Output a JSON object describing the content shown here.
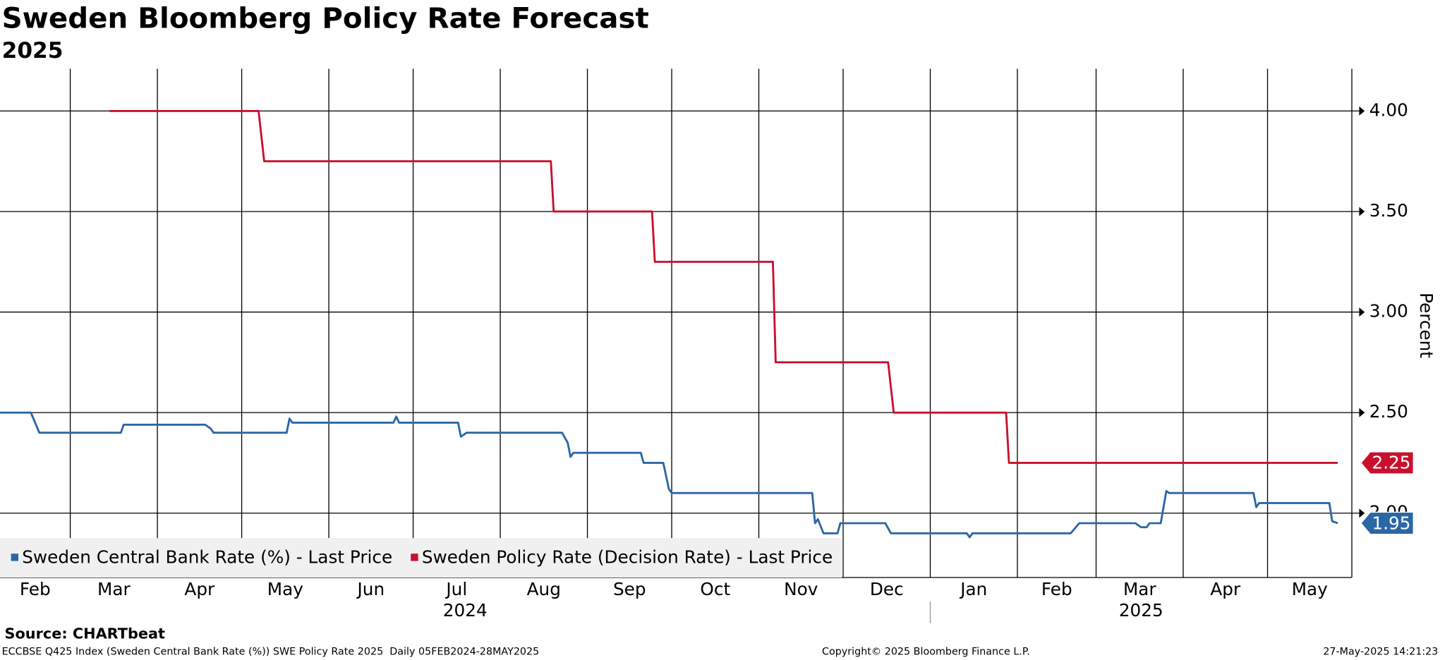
{
  "chart_data": {
    "type": "line",
    "title": "Sweden Bloomberg Policy Rate Forecast",
    "subtitle": "2025",
    "y_label": "Percent",
    "xlim": [
      "2024-02-05",
      "2025-05-31"
    ],
    "xticks": [
      {
        "value": "2024-02-01",
        "label": "Feb"
      },
      {
        "value": "2024-03-01",
        "label": "Mar"
      },
      {
        "value": "2024-04-01",
        "label": "Apr"
      },
      {
        "value": "2024-05-01",
        "label": "May"
      },
      {
        "value": "2024-06-01",
        "label": "Jun"
      },
      {
        "value": "2024-07-01",
        "label": "Jul"
      },
      {
        "value": "2024-08-01",
        "label": "Aug"
      },
      {
        "value": "2024-09-01",
        "label": "Sep"
      },
      {
        "value": "2024-10-01",
        "label": "Oct"
      },
      {
        "value": "2024-11-01",
        "label": "Nov"
      },
      {
        "value": "2024-12-01",
        "label": "Dec"
      },
      {
        "value": "2025-01-01",
        "label": "Jan"
      },
      {
        "value": "2025-02-01",
        "label": "Feb"
      },
      {
        "value": "2025-03-01",
        "label": "Mar"
      },
      {
        "value": "2025-04-01",
        "label": "Apr"
      },
      {
        "value": "2025-05-01",
        "label": "May"
      }
    ],
    "years": [
      "2024",
      "2025"
    ],
    "ylim": [
      1.68,
      4.21
    ],
    "yticks": [
      {
        "value": 2,
        "label": "2.00"
      },
      {
        "value": 2.5,
        "label": "2.50"
      },
      {
        "value": 3,
        "label": "3.00"
      },
      {
        "value": 3.5,
        "label": "3.50"
      },
      {
        "value": 4,
        "label": "4.00"
      }
    ],
    "grid": true,
    "legend": "bottom-left",
    "series": [
      {
        "name": "Sweden Central Bank Rate (%) - Last Price",
        "color": "#2b67a6",
        "x": [
          "2024-02-05",
          "2024-02-16",
          "2024-02-19",
          "2024-03-19",
          "2024-03-20",
          "2024-04-18",
          "2024-04-20",
          "2024-04-21",
          "2024-05-17",
          "2024-05-18",
          "2024-05-19",
          "2024-06-24",
          "2024-06-25",
          "2024-06-26",
          "2024-07-17",
          "2024-07-18",
          "2024-07-20",
          "2024-08-23",
          "2024-08-25",
          "2024-08-26",
          "2024-08-27",
          "2024-09-20",
          "2024-09-21",
          "2024-09-28",
          "2024-09-30",
          "2024-10-01",
          "2024-11-20",
          "2024-11-21",
          "2024-11-22",
          "2024-11-24",
          "2024-11-29",
          "2024-11-30",
          "2024-12-16",
          "2024-12-18",
          "2025-01-14",
          "2025-01-15",
          "2025-01-16",
          "2025-02-20",
          "2025-02-23",
          "2025-03-15",
          "2025-03-17",
          "2025-03-19",
          "2025-03-20",
          "2025-03-24",
          "2025-03-26",
          "2025-03-27",
          "2025-04-26",
          "2025-04-27",
          "2025-04-28",
          "2025-05-23",
          "2025-05-24",
          "2025-05-26"
        ],
        "values": [
          2.5,
          2.5,
          2.4,
          2.4,
          2.44,
          2.44,
          2.42,
          2.4,
          2.4,
          2.47,
          2.45,
          2.45,
          2.48,
          2.45,
          2.45,
          2.38,
          2.4,
          2.4,
          2.35,
          2.28,
          2.3,
          2.3,
          2.25,
          2.25,
          2.12,
          2.1,
          2.1,
          1.95,
          1.97,
          1.9,
          1.9,
          1.95,
          1.95,
          1.9,
          1.9,
          1.88,
          1.9,
          1.9,
          1.95,
          1.95,
          1.93,
          1.93,
          1.95,
          1.95,
          2.11,
          2.1,
          2.1,
          2.03,
          2.05,
          2.05,
          1.96,
          1.95
        ]
      },
      {
        "name": "Sweden Policy Rate (Decision Rate) - Last Price",
        "color": "#c8102e",
        "x": [
          "2024-03-15",
          "2024-05-07",
          "2024-05-09",
          "2024-08-19",
          "2024-08-20",
          "2024-09-24",
          "2024-09-25",
          "2024-11-06",
          "2024-11-07",
          "2024-12-17",
          "2024-12-19",
          "2025-01-28",
          "2025-01-29",
          "2025-05-26"
        ],
        "values": [
          4.0,
          4.0,
          3.75,
          3.75,
          3.5,
          3.5,
          3.25,
          3.25,
          2.75,
          2.75,
          2.5,
          2.5,
          2.25,
          2.25
        ]
      }
    ]
  },
  "footer": {
    "source": "Source: CHARTbeat",
    "description": "ECCBSE Q425 Index (Sweden Central Bank Rate (%)) SWE Policy Rate 2025  Daily 05FEB2024-28MAY2025",
    "copyright": "Copyright© 2025 Bloomberg Finance L.P.",
    "timestamp": "27-May-2025 14:21:23"
  }
}
